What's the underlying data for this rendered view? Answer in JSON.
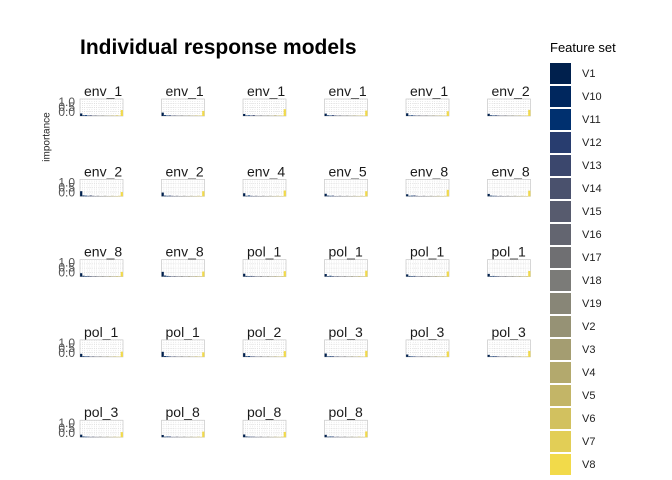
{
  "chart_data": {
    "type": "bar",
    "title": "Individual response models",
    "ylabel": "importance",
    "xlabel": "",
    "ylim": [
      0,
      1.0
    ],
    "y_ticks": [
      "0.0",
      "0.5",
      "1.0"
    ],
    "grid": true,
    "legend_position": "right",
    "legend": {
      "title": "Feature set",
      "items": [
        {
          "label": "V1",
          "color": "#00204d"
        },
        {
          "label": "V10",
          "color": "#00275e"
        },
        {
          "label": "V11",
          "color": "#00306f"
        },
        {
          "label": "V12",
          "color": "#283d6f"
        },
        {
          "label": "V13",
          "color": "#3b476d"
        },
        {
          "label": "V14",
          "color": "#4a516d"
        },
        {
          "label": "V15",
          "color": "#575b6e"
        },
        {
          "label": "V16",
          "color": "#636570"
        },
        {
          "label": "V17",
          "color": "#6f6f72"
        },
        {
          "label": "V18",
          "color": "#7b7b78"
        },
        {
          "label": "V19",
          "color": "#888677"
        },
        {
          "label": "V2",
          "color": "#969275"
        },
        {
          "label": "V3",
          "color": "#a49d71"
        },
        {
          "label": "V4",
          "color": "#b3a96d"
        },
        {
          "label": "V5",
          "color": "#c3b567"
        },
        {
          "label": "V6",
          "color": "#d2c15f"
        },
        {
          "label": "V7",
          "color": "#e2ce56"
        },
        {
          "label": "V8",
          "color": "#f2da4a"
        }
      ]
    },
    "panels": [
      {
        "label": "env_1",
        "values": [
          0.15,
          0.04,
          0.05,
          0.03,
          0.04,
          0.02,
          0.03,
          0.02,
          0.02,
          0.03,
          0.02,
          0.02,
          0.02,
          0.03,
          0.02,
          0.04,
          0.02,
          0.35
        ]
      },
      {
        "label": "env_1",
        "values": [
          0.2,
          0.05,
          0.03,
          0.04,
          0.02,
          0.03,
          0.02,
          0.02,
          0.03,
          0.02,
          0.02,
          0.03,
          0.02,
          0.02,
          0.03,
          0.02,
          0.03,
          0.3
        ]
      },
      {
        "label": "env_1",
        "values": [
          0.12,
          0.03,
          0.04,
          0.03,
          0.05,
          0.02,
          0.02,
          0.03,
          0.02,
          0.02,
          0.03,
          0.02,
          0.02,
          0.04,
          0.02,
          0.03,
          0.02,
          0.4
        ]
      },
      {
        "label": "env_1",
        "values": [
          0.14,
          0.04,
          0.03,
          0.05,
          0.03,
          0.02,
          0.03,
          0.02,
          0.02,
          0.03,
          0.02,
          0.02,
          0.03,
          0.02,
          0.02,
          0.03,
          0.02,
          0.32
        ]
      },
      {
        "label": "env_1",
        "values": [
          0.16,
          0.03,
          0.04,
          0.03,
          0.02,
          0.03,
          0.02,
          0.02,
          0.03,
          0.02,
          0.02,
          0.03,
          0.02,
          0.02,
          0.03,
          0.02,
          0.02,
          0.28
        ]
      },
      {
        "label": "env_2",
        "values": [
          0.13,
          0.04,
          0.03,
          0.04,
          0.03,
          0.02,
          0.02,
          0.03,
          0.02,
          0.02,
          0.03,
          0.02,
          0.02,
          0.03,
          0.02,
          0.02,
          0.03,
          0.36
        ]
      },
      {
        "label": "env_2",
        "values": [
          0.3,
          0.05,
          0.04,
          0.03,
          0.05,
          0.03,
          0.02,
          0.03,
          0.02,
          0.02,
          0.03,
          0.02,
          0.02,
          0.03,
          0.02,
          0.02,
          0.03,
          0.25
        ]
      },
      {
        "label": "env_2",
        "values": [
          0.22,
          0.04,
          0.03,
          0.04,
          0.03,
          0.02,
          0.03,
          0.02,
          0.02,
          0.03,
          0.02,
          0.02,
          0.03,
          0.02,
          0.02,
          0.03,
          0.02,
          0.3
        ]
      },
      {
        "label": "env_4",
        "values": [
          0.18,
          0.03,
          0.05,
          0.03,
          0.02,
          0.03,
          0.02,
          0.02,
          0.03,
          0.02,
          0.02,
          0.03,
          0.02,
          0.02,
          0.03,
          0.02,
          0.02,
          0.34
        ]
      },
      {
        "label": "env_5",
        "values": [
          0.15,
          0.04,
          0.03,
          0.04,
          0.02,
          0.02,
          0.03,
          0.02,
          0.02,
          0.03,
          0.02,
          0.02,
          0.03,
          0.02,
          0.02,
          0.03,
          0.02,
          0.3
        ]
      },
      {
        "label": "env_8",
        "values": [
          0.12,
          0.03,
          0.04,
          0.05,
          0.03,
          0.02,
          0.02,
          0.03,
          0.02,
          0.02,
          0.03,
          0.02,
          0.02,
          0.03,
          0.02,
          0.02,
          0.03,
          0.38
        ]
      },
      {
        "label": "env_8",
        "values": [
          0.14,
          0.04,
          0.03,
          0.03,
          0.02,
          0.03,
          0.02,
          0.02,
          0.03,
          0.02,
          0.02,
          0.03,
          0.02,
          0.02,
          0.03,
          0.02,
          0.02,
          0.33
        ]
      },
      {
        "label": "env_8",
        "values": [
          0.2,
          0.05,
          0.03,
          0.04,
          0.03,
          0.02,
          0.03,
          0.02,
          0.02,
          0.03,
          0.02,
          0.02,
          0.03,
          0.02,
          0.02,
          0.03,
          0.02,
          0.28
        ]
      },
      {
        "label": "env_8",
        "values": [
          0.28,
          0.06,
          0.04,
          0.03,
          0.02,
          0.03,
          0.02,
          0.02,
          0.03,
          0.02,
          0.02,
          0.03,
          0.02,
          0.02,
          0.03,
          0.02,
          0.02,
          0.3
        ]
      },
      {
        "label": "pol_1",
        "values": [
          0.17,
          0.04,
          0.03,
          0.04,
          0.03,
          0.02,
          0.02,
          0.03,
          0.02,
          0.02,
          0.03,
          0.02,
          0.02,
          0.03,
          0.02,
          0.02,
          0.03,
          0.32
        ]
      },
      {
        "label": "pol_1",
        "values": [
          0.15,
          0.03,
          0.05,
          0.03,
          0.02,
          0.03,
          0.02,
          0.02,
          0.03,
          0.02,
          0.02,
          0.03,
          0.02,
          0.02,
          0.03,
          0.02,
          0.02,
          0.35
        ]
      },
      {
        "label": "pol_1",
        "values": [
          0.13,
          0.04,
          0.03,
          0.04,
          0.02,
          0.02,
          0.03,
          0.02,
          0.02,
          0.03,
          0.02,
          0.02,
          0.03,
          0.02,
          0.02,
          0.03,
          0.02,
          0.3
        ]
      },
      {
        "label": "pol_1",
        "values": [
          0.16,
          0.03,
          0.04,
          0.03,
          0.03,
          0.02,
          0.02,
          0.03,
          0.02,
          0.02,
          0.03,
          0.02,
          0.02,
          0.03,
          0.02,
          0.02,
          0.03,
          0.33
        ]
      },
      {
        "label": "pol_1",
        "values": [
          0.18,
          0.04,
          0.03,
          0.04,
          0.02,
          0.03,
          0.02,
          0.02,
          0.03,
          0.02,
          0.02,
          0.03,
          0.02,
          0.02,
          0.03,
          0.02,
          0.02,
          0.31
        ]
      },
      {
        "label": "pol_1",
        "values": [
          0.3,
          0.05,
          0.04,
          0.03,
          0.02,
          0.03,
          0.02,
          0.02,
          0.03,
          0.02,
          0.02,
          0.03,
          0.02,
          0.02,
          0.03,
          0.02,
          0.02,
          0.27
        ]
      },
      {
        "label": "pol_2",
        "values": [
          0.22,
          0.04,
          0.05,
          0.03,
          0.03,
          0.02,
          0.02,
          0.03,
          0.02,
          0.02,
          0.03,
          0.02,
          0.02,
          0.03,
          0.02,
          0.02,
          0.03,
          0.34
        ]
      },
      {
        "label": "pol_3",
        "values": [
          0.2,
          0.03,
          0.04,
          0.04,
          0.02,
          0.03,
          0.02,
          0.02,
          0.03,
          0.02,
          0.02,
          0.03,
          0.02,
          0.02,
          0.03,
          0.02,
          0.02,
          0.36
        ]
      },
      {
        "label": "pol_3",
        "values": [
          0.14,
          0.04,
          0.03,
          0.03,
          0.02,
          0.02,
          0.03,
          0.02,
          0.02,
          0.03,
          0.02,
          0.02,
          0.03,
          0.02,
          0.02,
          0.03,
          0.02,
          0.32
        ]
      },
      {
        "label": "pol_3",
        "values": [
          0.12,
          0.03,
          0.04,
          0.04,
          0.03,
          0.02,
          0.02,
          0.03,
          0.02,
          0.02,
          0.03,
          0.02,
          0.02,
          0.03,
          0.02,
          0.02,
          0.03,
          0.35
        ]
      },
      {
        "label": "pol_3",
        "values": [
          0.15,
          0.04,
          0.03,
          0.03,
          0.02,
          0.03,
          0.02,
          0.02,
          0.03,
          0.02,
          0.02,
          0.03,
          0.02,
          0.02,
          0.03,
          0.02,
          0.02,
          0.3
        ]
      },
      {
        "label": "pol_8",
        "values": [
          0.13,
          0.03,
          0.04,
          0.04,
          0.02,
          0.02,
          0.03,
          0.02,
          0.02,
          0.03,
          0.02,
          0.02,
          0.03,
          0.02,
          0.02,
          0.03,
          0.02,
          0.33
        ]
      },
      {
        "label": "pol_8",
        "values": [
          0.16,
          0.04,
          0.03,
          0.03,
          0.03,
          0.02,
          0.02,
          0.03,
          0.02,
          0.02,
          0.03,
          0.02,
          0.02,
          0.03,
          0.02,
          0.02,
          0.03,
          0.31
        ]
      },
      {
        "label": "pol_8",
        "values": [
          0.14,
          0.03,
          0.04,
          0.04,
          0.02,
          0.03,
          0.02,
          0.02,
          0.03,
          0.02,
          0.02,
          0.03,
          0.02,
          0.02,
          0.03,
          0.02,
          0.02,
          0.34
        ]
      }
    ]
  }
}
